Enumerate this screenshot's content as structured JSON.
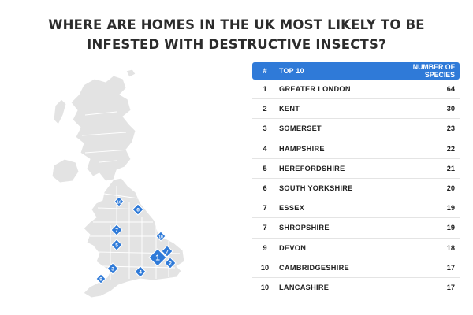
{
  "title_lines": [
    "WHERE ARE HOMES IN THE UK MOST LIKELY TO BE",
    "INFESTED WITH DESTRUCTIVE INSECTS?"
  ],
  "table": {
    "headers": {
      "rank": "#",
      "name": "TOP 10",
      "value": "NUMBER OF SPECIES"
    }
  },
  "chart_data": {
    "type": "table",
    "title": "WHERE ARE HOMES IN THE UK MOST LIKELY TO BE INFESTED WITH DESTRUCTIVE INSECTS?",
    "columns": [
      "#",
      "TOP 10",
      "NUMBER OF SPECIES"
    ],
    "rows": [
      {
        "rank": "1",
        "name": "GREATER LONDON",
        "value": 64
      },
      {
        "rank": "2",
        "name": "KENT",
        "value": 30
      },
      {
        "rank": "3",
        "name": "SOMERSET",
        "value": 23
      },
      {
        "rank": "4",
        "name": "HAMPSHIRE",
        "value": 22
      },
      {
        "rank": "5",
        "name": "HEREFORDSHIRE",
        "value": 21
      },
      {
        "rank": "6",
        "name": "SOUTH YORKSHIRE",
        "value": 20
      },
      {
        "rank": "7",
        "name": "ESSEX",
        "value": 19
      },
      {
        "rank": "7",
        "name": "SHROPSHIRE",
        "value": 19
      },
      {
        "rank": "9",
        "name": "DEVON",
        "value": 18
      },
      {
        "rank": "10",
        "name": "CAMBRIDGESHIRE",
        "value": 17
      },
      {
        "rank": "10",
        "name": "LANCASHIRE",
        "value": 17
      }
    ],
    "map_markers": [
      "1",
      "2",
      "3",
      "4",
      "5",
      "6",
      "7",
      "7",
      "9",
      "10",
      "10"
    ]
  },
  "colors": {
    "accent": "#2f7ad8",
    "land": "#e3e3e3",
    "border": "#ffffff",
    "text": "#222222"
  }
}
